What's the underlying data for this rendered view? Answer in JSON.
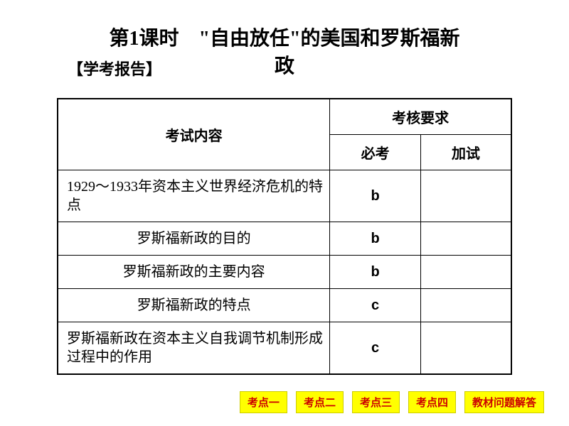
{
  "title": {
    "line1": "第1课时　\"自由放任\"的美国和罗斯福新",
    "line2": "政"
  },
  "subtitle": "【学考报告】",
  "table": {
    "headers": {
      "content": "考试内容",
      "requirements": "考核要求",
      "mandatory": "必考",
      "additional": "加试"
    },
    "rows": [
      {
        "content": "1929～1933年资本主义世界经济危机的特点",
        "mandatory": "b",
        "additional": "",
        "align": "left"
      },
      {
        "content": "罗斯福新政的目的",
        "mandatory": "b",
        "additional": "",
        "align": "center"
      },
      {
        "content": "罗斯福新政的主要内容",
        "mandatory": "b",
        "additional": "",
        "align": "center"
      },
      {
        "content": "罗斯福新政的特点",
        "mandatory": "c",
        "additional": "",
        "align": "center"
      },
      {
        "content": "罗斯福新政在资本主义自我调节机制形成过程中的作用",
        "mandatory": "c",
        "additional": "",
        "align": "left"
      }
    ]
  },
  "nav": {
    "btn1": "考点一",
    "btn2": "考点二",
    "btn3": "考点三",
    "btn4": "考点四",
    "btn5": "教材问题解答"
  },
  "colors": {
    "background": "#ffffff",
    "text": "#000000",
    "border": "#000000",
    "btn_bg": "#ffff00",
    "btn_text": "#cc0000",
    "btn_border": "#cccc00"
  }
}
